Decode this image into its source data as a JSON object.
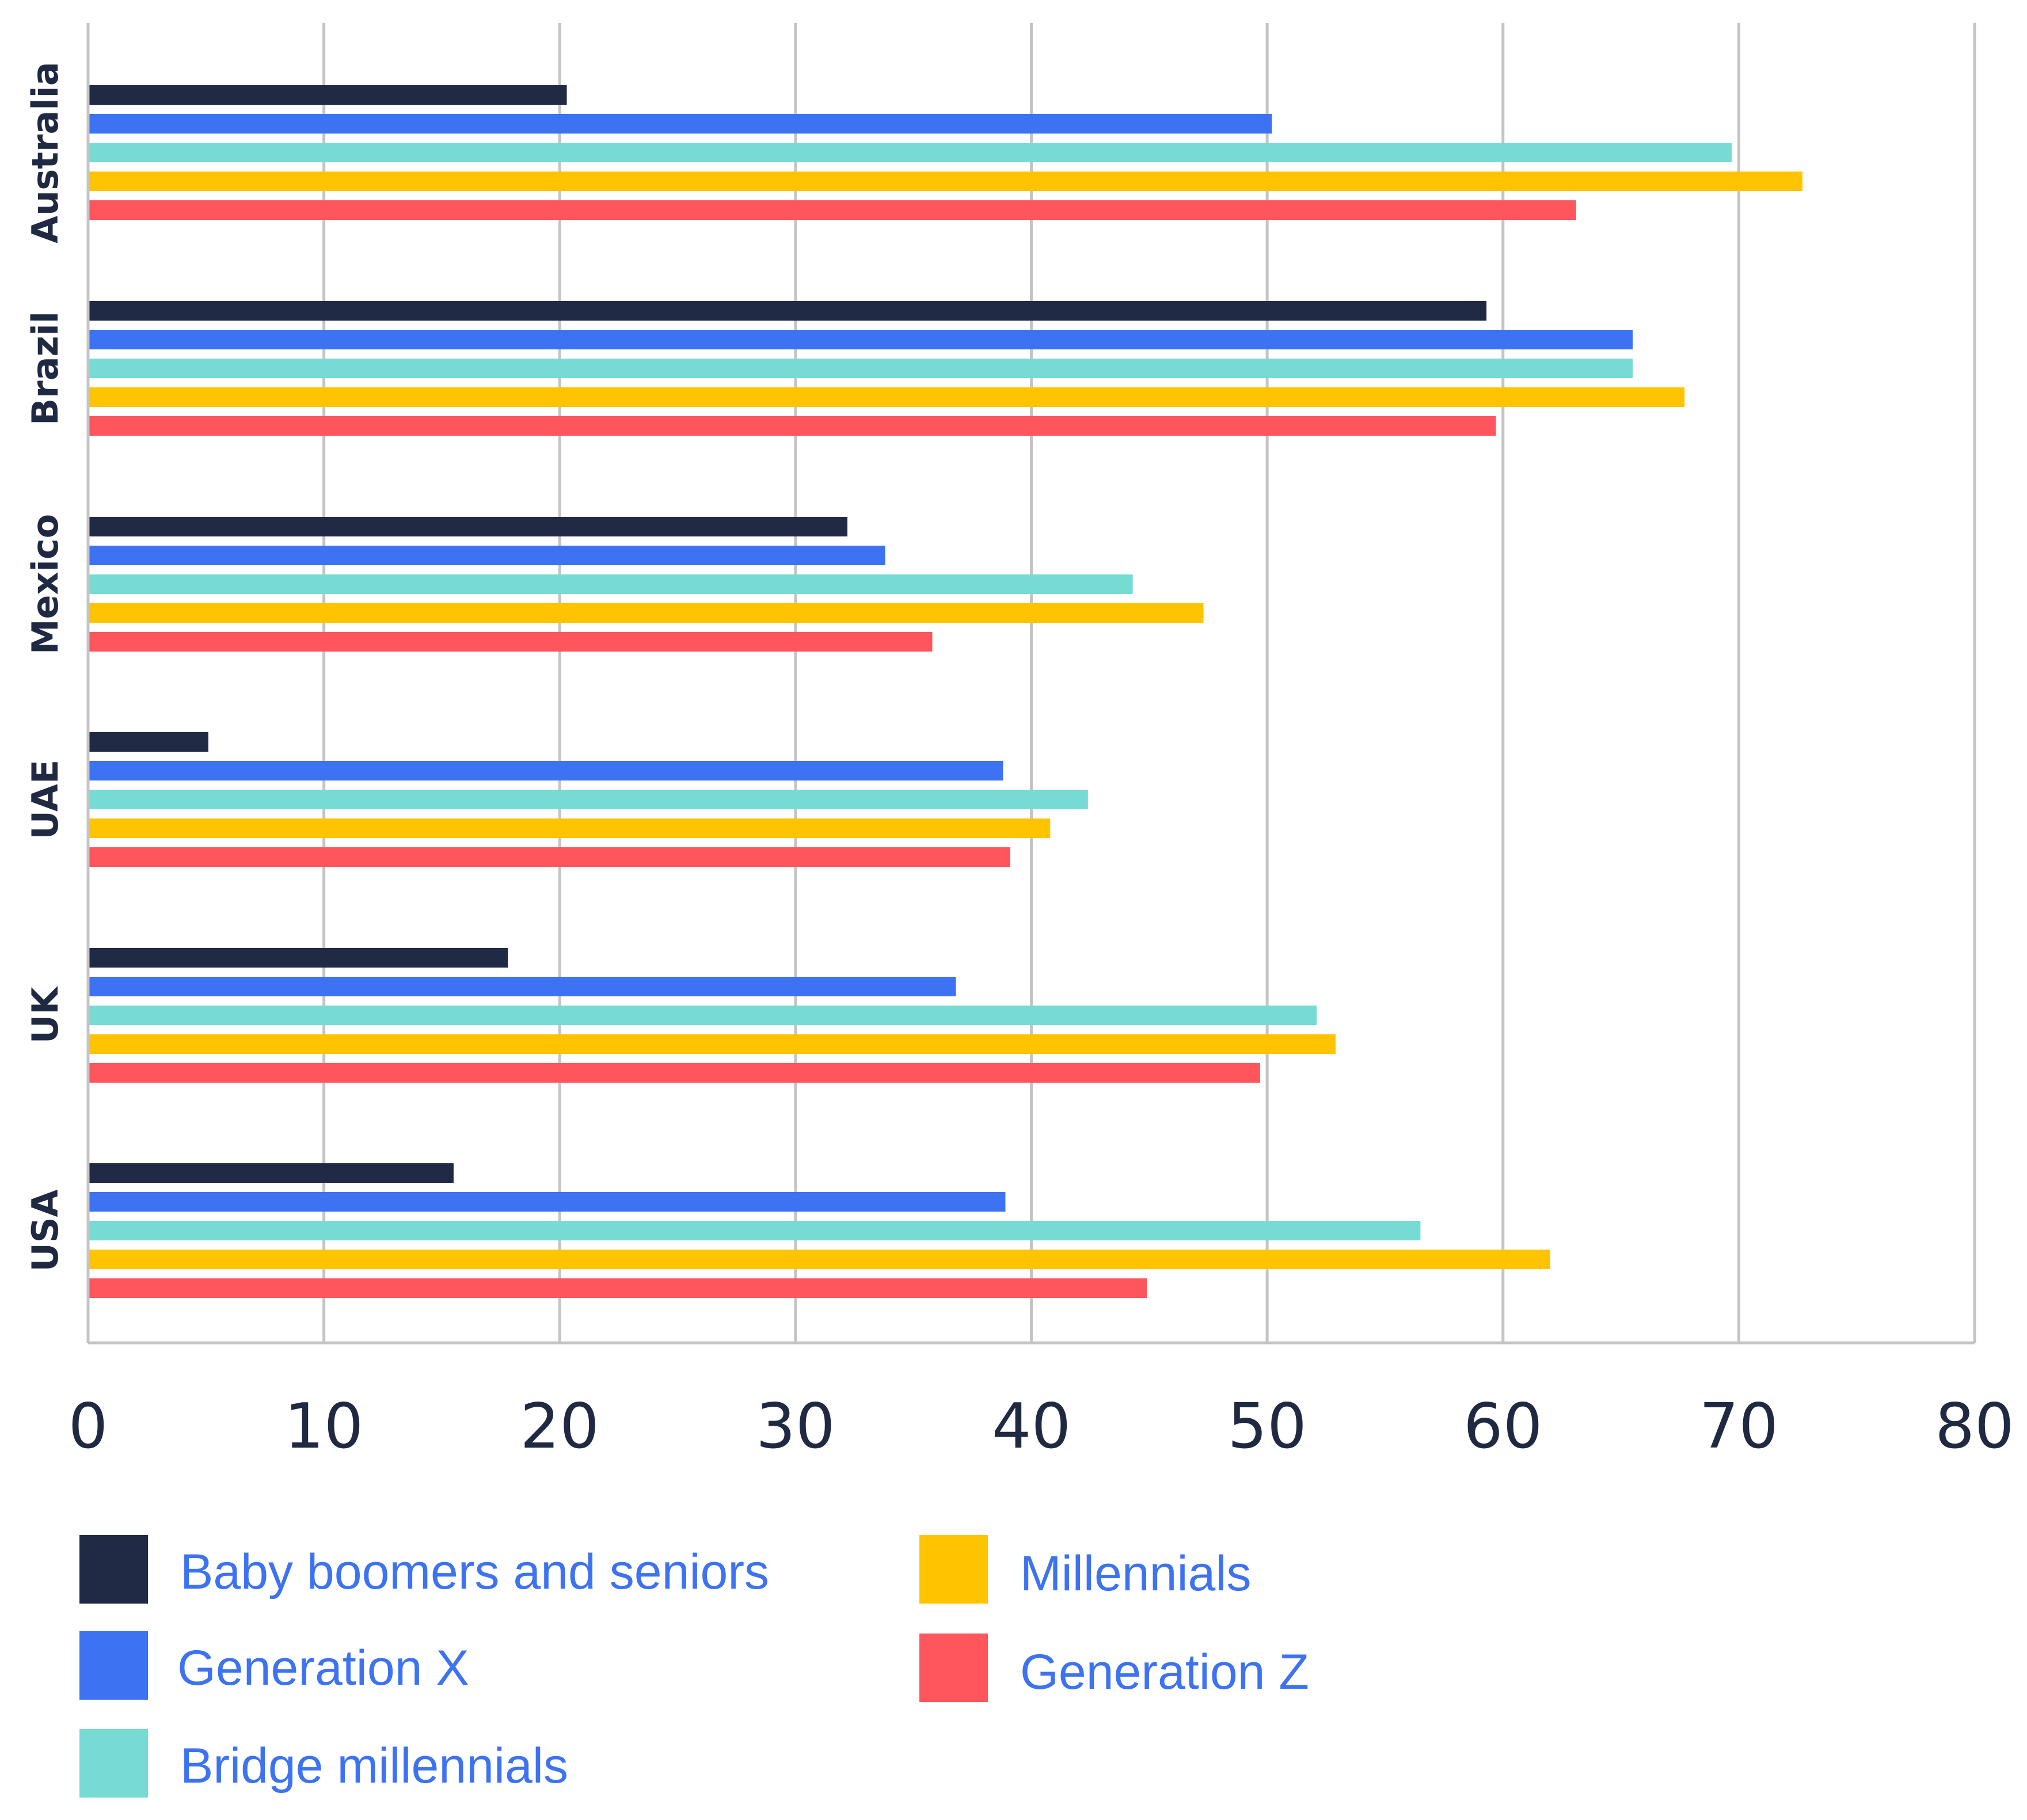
{
  "chart_data": {
    "type": "bar",
    "orientation": "horizontal",
    "categories": [
      "Australia",
      "Brazil",
      "Mexico",
      "UAE",
      "UK",
      "USA"
    ],
    "series": [
      {
        "name": "Baby boomers and seniors",
        "color": "#212a45",
        "values": [
          20.3,
          59.3,
          32.2,
          5.1,
          17.8,
          15.5
        ]
      },
      {
        "name": "Generation X",
        "color": "#3d73f2",
        "values": [
          50.2,
          65.5,
          33.8,
          38.8,
          36.8,
          38.9
        ]
      },
      {
        "name": "Bridge millennials",
        "color": "#76dbd3",
        "values": [
          69.7,
          65.5,
          44.3,
          42.4,
          52.1,
          56.5
        ]
      },
      {
        "name": "Millennials",
        "color": "#ffc300",
        "values": [
          72.7,
          67.7,
          47.3,
          40.8,
          52.9,
          62.0
        ]
      },
      {
        "name": "Generation Z",
        "color": "#ff555d",
        "values": [
          63.1,
          59.7,
          35.8,
          39.1,
          49.7,
          44.9
        ]
      }
    ],
    "xlim": [
      0,
      80
    ],
    "xticks": [
      "0",
      "10",
      "20",
      "30",
      "40",
      "50",
      "60",
      "70",
      "80"
    ],
    "grid": true,
    "legend_position": "bottom",
    "title": "",
    "xlabel": "",
    "ylabel": ""
  }
}
